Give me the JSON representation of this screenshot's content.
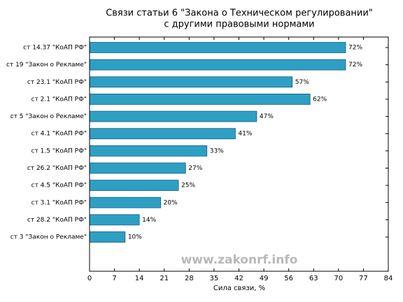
{
  "chart_data": {
    "type": "barh",
    "title": "Связи статьи 6 \"Закона о Техническом регулировании\"",
    "subtitle": "с другими правовыми нормами",
    "xlabel": "Сила связи, %",
    "annotation": "www.zakonrf.info",
    "categories": [
      "ст 14.37 \"КоАП РФ\"",
      "ст 19 \"Закон о Рекламе\"",
      "ст 23.1 \"КоАП РФ\"",
      "ст 2.1 \"КоАП РФ\"",
      "ст 5 \"Закон о Рекламе\"",
      "ст 4.1 \"КоАП РФ\"",
      "ст 1.5 \"КоАП РФ\"",
      "ст 26.2 \"КоАП РФ\"",
      "ст 4.5 \"КоАП РФ\"",
      "ст 3.1 \"КоАП РФ\"",
      "ст 28.2 \"КоАП РФ\"",
      "ст 3 \"Закон о Рекламе\""
    ],
    "values": [
      72,
      72,
      57,
      62,
      47,
      41,
      33,
      27,
      25,
      20,
      14,
      10
    ],
    "value_labels": [
      "72%",
      "72%",
      "57%",
      "62%",
      "47%",
      "41%",
      "33%",
      "27%",
      "25%",
      "20%",
      "14%",
      "10%"
    ],
    "color": "#2e9fc4",
    "xlim": [
      0,
      84
    ],
    "xticks": [
      0,
      7,
      14,
      21,
      28,
      35,
      42,
      49,
      56,
      63,
      70,
      77,
      84
    ]
  }
}
